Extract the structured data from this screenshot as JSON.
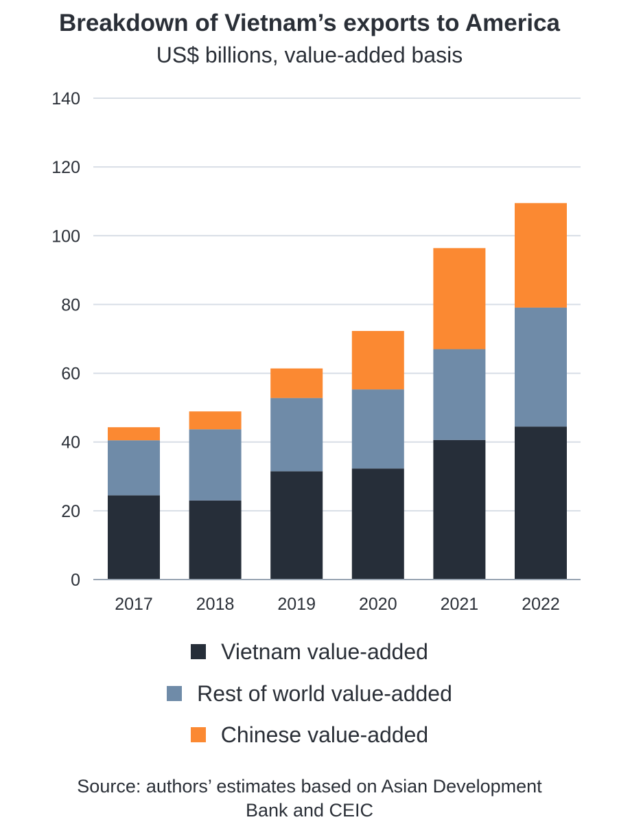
{
  "chart_data": {
    "type": "bar",
    "stacked": true,
    "title": "Breakdown of Vietnam’s exports to America",
    "subtitle": "US$ billions, value-added basis",
    "categories": [
      "2017",
      "2018",
      "2019",
      "2020",
      "2021",
      "2022"
    ],
    "series": [
      {
        "name": "Vietnam value-added",
        "color": "#262e39",
        "values": [
          24.5,
          23,
          31.5,
          32.3,
          40.6,
          44.5
        ]
      },
      {
        "name": "Rest of world value-added",
        "color": "#6f8ba8",
        "values": [
          16,
          20.7,
          21.3,
          23,
          26.4,
          34.6
        ]
      },
      {
        "name": "Chinese value-added",
        "color": "#fb8932",
        "values": [
          3.8,
          5.2,
          8.6,
          17,
          29.4,
          30.4
        ]
      }
    ],
    "ylim": [
      0,
      140
    ],
    "yticks": [
      "0",
      "20",
      "40",
      "60",
      "80",
      "100",
      "120",
      "140"
    ],
    "grid": true,
    "legend_position": "bottom"
  },
  "source": {
    "line1": "Source: authors’ estimates based on Asian Development",
    "line2": "Bank and CEIC"
  }
}
